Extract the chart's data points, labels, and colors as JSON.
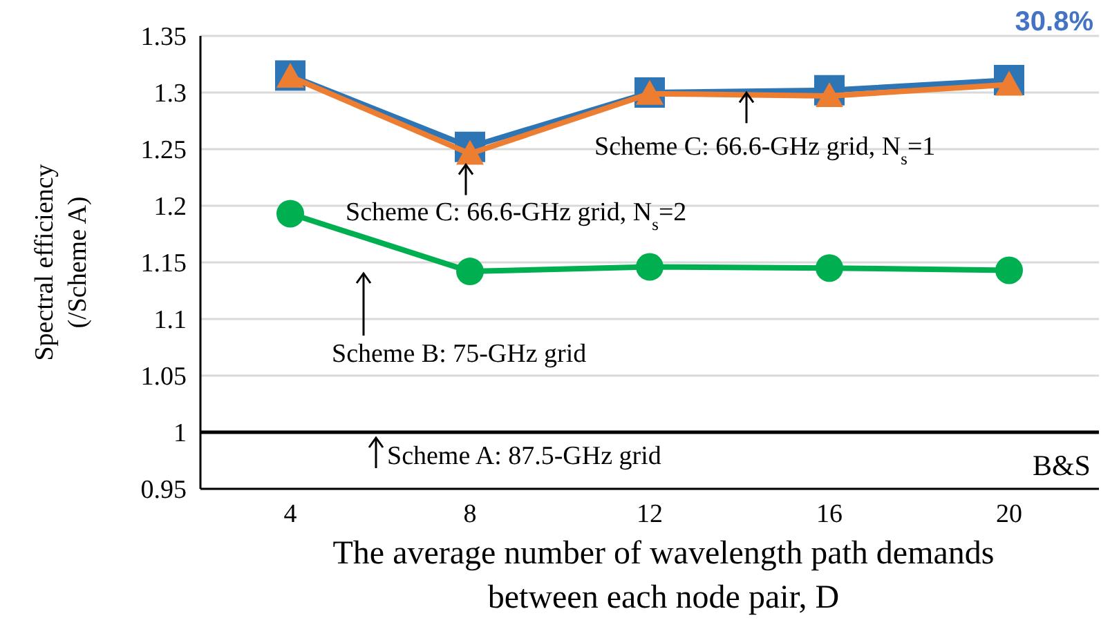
{
  "chart_data": {
    "type": "line",
    "xlabel": "The average number of wavelength path demands between each node pair, D",
    "ylabel": "Spectral efficiency (/Scheme A)",
    "categories": [
      "4",
      "8",
      "12",
      "16",
      "20"
    ],
    "series": [
      {
        "color": "#2e75b6",
        "marker": "square",
        "values": [
          1.315,
          1.252,
          1.3,
          1.302,
          1.311
        ]
      },
      {
        "color": "#ed7d31",
        "marker": "triangle",
        "values": [
          1.314,
          1.246,
          1.299,
          1.297,
          1.307
        ]
      },
      {
        "color": "#00b050",
        "marker": "circle",
        "values": [
          1.193,
          1.142,
          1.146,
          1.145,
          1.143
        ]
      }
    ],
    "ref_lines": [
      {
        "axis": "y",
        "value": 1,
        "color": "#000000"
      }
    ],
    "ylim": [
      0.95,
      1.35
    ],
    "yticks": [
      0.95,
      1,
      1.05,
      1.1,
      1.15,
      1.2,
      1.25,
      1.3,
      1.35
    ],
    "grid": "y",
    "annotations": [
      "30.8%",
      "B&S",
      {
        "text": "Scheme C: 66.6-GHz grid, N$_{s}$=1",
        "y": 1.301
      },
      {
        "text": "Scheme C: 66.6-GHz grid, N$_{s}$=2",
        "x": "8",
        "y": 1.246
      },
      "Scheme B: 75-GHz grid",
      {
        "text": "Scheme A: 87.5-GHz grid",
        "y": 1
      }
    ]
  }
}
